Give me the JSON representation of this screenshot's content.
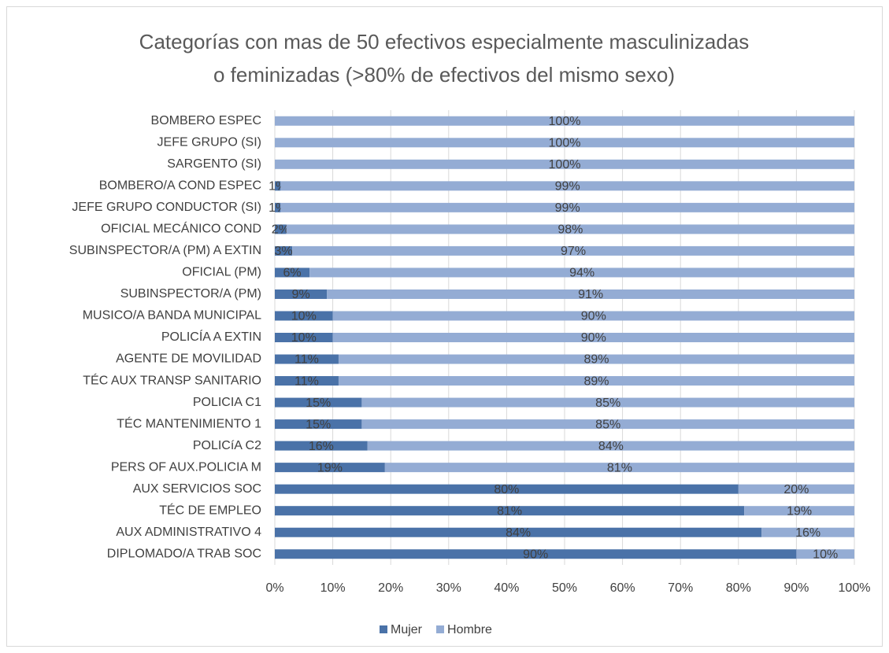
{
  "chart_data": {
    "type": "stacked_barh",
    "title": "Categorías con mas de 50 efectivos especialmente masculinizadas o feminizadas (>80% de efectivos del mismo sexo)",
    "categories": [
      "BOMBERO ESPEC",
      "JEFE GRUPO (SI)",
      "SARGENTO (SI)",
      "BOMBERO/A COND ESPEC",
      "JEFE GRUPO CONDUCTOR (SI)",
      "OFICIAL MECÁNICO COND",
      "SUBINSPECTOR/A (PM) A EXTIN",
      "OFICIAL (PM)",
      "SUBINSPECTOR/A (PM)",
      "MUSICO/A BANDA MUNICIPAL",
      "POLICÍA A EXTIN",
      "AGENTE DE MOVILIDAD",
      "TÉC AUX TRANSP SANITARIO",
      "POLICIA C1",
      "TÉC MANTENIMIENTO 1",
      "POLICíA C2",
      "PERS OF AUX.POLICIA M",
      "AUX SERVICIOS SOC",
      "TÉC DE EMPLEO",
      "AUX ADMINISTRATIVO 4",
      "DIPLOMADO/A TRAB SOC"
    ],
    "series": [
      {
        "name": "Mujer",
        "color": "#4a72a8",
        "values": [
          0,
          0,
          0,
          1,
          1,
          2,
          3,
          6,
          9,
          10,
          10,
          11,
          11,
          15,
          15,
          16,
          19,
          80,
          81,
          84,
          90
        ],
        "value_labels": [
          null,
          null,
          null,
          "1%",
          "1%",
          "2%",
          "3%",
          "6%",
          "9%",
          "10%",
          "10%",
          "11%",
          "11%",
          "15%",
          "15%",
          "16%",
          "19%",
          "80%",
          "81%",
          "84%",
          "90%"
        ]
      },
      {
        "name": "Hombre",
        "color": "#94acd4",
        "values": [
          100,
          100,
          100,
          99,
          99,
          98,
          97,
          94,
          91,
          90,
          90,
          89,
          89,
          85,
          85,
          84,
          81,
          20,
          19,
          16,
          10
        ],
        "value_labels": [
          "100%",
          "100%",
          "100%",
          "99%",
          "99%",
          "98%",
          "97%",
          "94%",
          "91%",
          "90%",
          "90%",
          "89%",
          "89%",
          "85%",
          "85%",
          "84%",
          "81%",
          "20%",
          "19%",
          "16%",
          "10%"
        ]
      }
    ],
    "xlim": [
      0,
      100
    ],
    "xticks": [
      {
        "value": 0,
        "label": "0%"
      },
      {
        "value": 10,
        "label": "10%"
      },
      {
        "value": 20,
        "label": "20%"
      },
      {
        "value": 30,
        "label": "30%"
      },
      {
        "value": 40,
        "label": "40%"
      },
      {
        "value": 50,
        "label": "50%"
      },
      {
        "value": 60,
        "label": "60%"
      },
      {
        "value": 70,
        "label": "70%"
      },
      {
        "value": 80,
        "label": "80%"
      },
      {
        "value": 90,
        "label": "90%"
      },
      {
        "value": 100,
        "label": "100%"
      }
    ],
    "grid": true,
    "legend": "bottom"
  }
}
